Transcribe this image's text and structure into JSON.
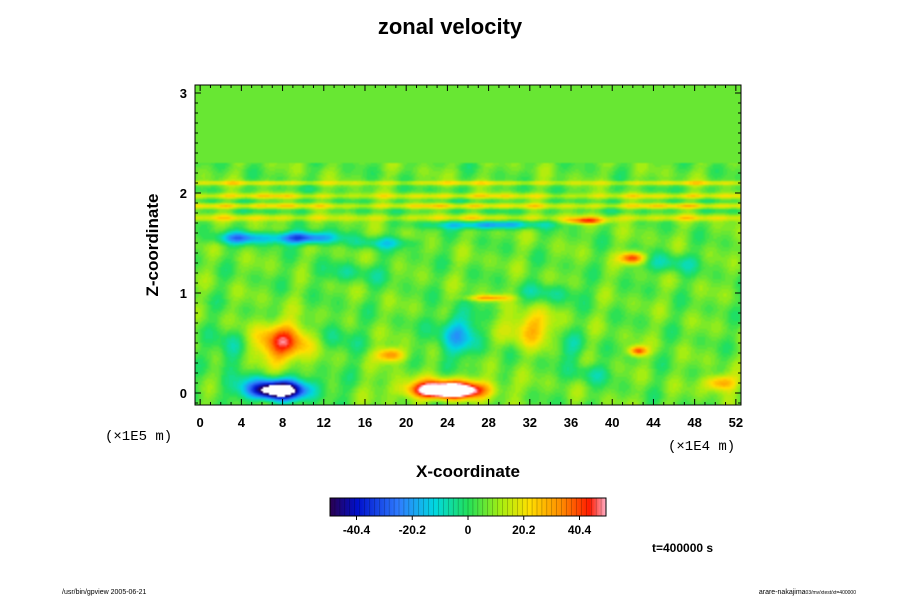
{
  "chart_data": {
    "type": "heatmap",
    "title": "zonal velocity",
    "xlabel": "X-coordinate",
    "ylabel": "Z-coordinate",
    "x_ticks": [
      "0",
      "4",
      "8",
      "12",
      "16",
      "20",
      "24",
      "28",
      "32",
      "36",
      "40",
      "44",
      "48",
      "52"
    ],
    "y_ticks": [
      "0",
      "1",
      "2",
      "3"
    ],
    "xlim": [
      -0.5,
      52.5
    ],
    "ylim": [
      -0.12,
      3.08
    ],
    "z_scale_label": "(×1E5 m)",
    "x_scale_label": "(×1E4 m)",
    "colorbar": {
      "range": [
        -50,
        50
      ],
      "ticks": [
        {
          "value": -40.4,
          "label": "-40.4"
        },
        {
          "value": -20.2,
          "label": "-20.2"
        },
        {
          "value": 0,
          "label": "0"
        },
        {
          "value": 20.2,
          "label": "20.2"
        },
        {
          "value": 40.4,
          "label": "40.4"
        }
      ]
    },
    "time_label": "t=400000 s",
    "background_value": 6,
    "features": [
      {
        "x": 7.5,
        "z": 0.02,
        "value": -55,
        "sx": 2.2,
        "sz": 0.08
      },
      {
        "x": 7.5,
        "z": 0.05,
        "value": -30,
        "sx": 4,
        "sz": 0.12
      },
      {
        "x": 24,
        "z": 0.02,
        "value": 60,
        "sx": 2.8,
        "sz": 0.07
      },
      {
        "x": 24,
        "z": 0.05,
        "value": 30,
        "sx": 4.5,
        "sz": 0.1
      },
      {
        "x": 8,
        "z": 0.5,
        "value": 35,
        "sx": 3,
        "sz": 0.2
      },
      {
        "x": 32,
        "z": 0.65,
        "value": 22,
        "sx": 2.3,
        "sz": 0.18
      },
      {
        "x": 25,
        "z": 0.58,
        "value": -22,
        "sx": 2.2,
        "sz": 0.22
      },
      {
        "x": 18.5,
        "z": 0.38,
        "value": 30,
        "sx": 1.4,
        "sz": 0.07
      },
      {
        "x": 3,
        "z": 0.45,
        "value": -15,
        "sx": 1.5,
        "sz": 0.2
      },
      {
        "x": 13,
        "z": 0.55,
        "value": -10,
        "sx": 2,
        "sz": 0.2
      },
      {
        "x": 50.5,
        "z": 0.1,
        "value": 28,
        "sx": 1.5,
        "sz": 0.08
      },
      {
        "x": 42.5,
        "z": 0.42,
        "value": 35,
        "sx": 0.9,
        "sz": 0.05
      },
      {
        "x": 36,
        "z": 0.45,
        "value": -10,
        "sx": 1.5,
        "sz": 0.15
      },
      {
        "x": 38,
        "z": 0.2,
        "value": -10,
        "sx": 2,
        "sz": 0.1
      },
      {
        "x": 4,
        "z": 1.55,
        "value": -28,
        "sx": 2.5,
        "sz": 0.06
      },
      {
        "x": 10,
        "z": 1.55,
        "value": -40,
        "sx": 3,
        "sz": 0.06
      },
      {
        "x": 18,
        "z": 1.5,
        "value": -15,
        "sx": 3,
        "sz": 0.06
      },
      {
        "x": 28,
        "z": 1.68,
        "value": -28,
        "sx": 5,
        "sz": 0.04
      },
      {
        "x": 37.5,
        "z": 1.72,
        "value": 30,
        "sx": 2,
        "sz": 0.03
      },
      {
        "x": 42,
        "z": 1.35,
        "value": 40,
        "sx": 1.2,
        "sz": 0.06
      },
      {
        "x": 28,
        "z": 0.95,
        "value": 25,
        "sx": 2,
        "sz": 0.03
      },
      {
        "x": 45.5,
        "z": 1.3,
        "value": -12,
        "sx": 3,
        "sz": 0.1
      },
      {
        "x": 34,
        "z": 1.0,
        "value": -10,
        "sx": 3,
        "sz": 0.1
      },
      {
        "x": 15,
        "z": 1.2,
        "value": -8,
        "sx": 4,
        "sz": 0.1
      }
    ],
    "bands": [
      {
        "z": 1.75,
        "value": 14,
        "sz": 0.03
      },
      {
        "z": 1.87,
        "value": 18,
        "sz": 0.025
      },
      {
        "z": 1.97,
        "value": 16,
        "sz": 0.025
      },
      {
        "z": 2.1,
        "value": 16,
        "sz": 0.02
      },
      {
        "z": 1.82,
        "value": -4,
        "sz": 0.02
      },
      {
        "z": 1.92,
        "value": -3,
        "sz": 0.02
      },
      {
        "z": 2.04,
        "value": -2,
        "sz": 0.02
      }
    ]
  },
  "footer": {
    "left": "/usr/bin/gpview 2005-06-21",
    "right_main": "arare-nakajima",
    "right_sub": "03/mv/xtest/xt=400000"
  }
}
